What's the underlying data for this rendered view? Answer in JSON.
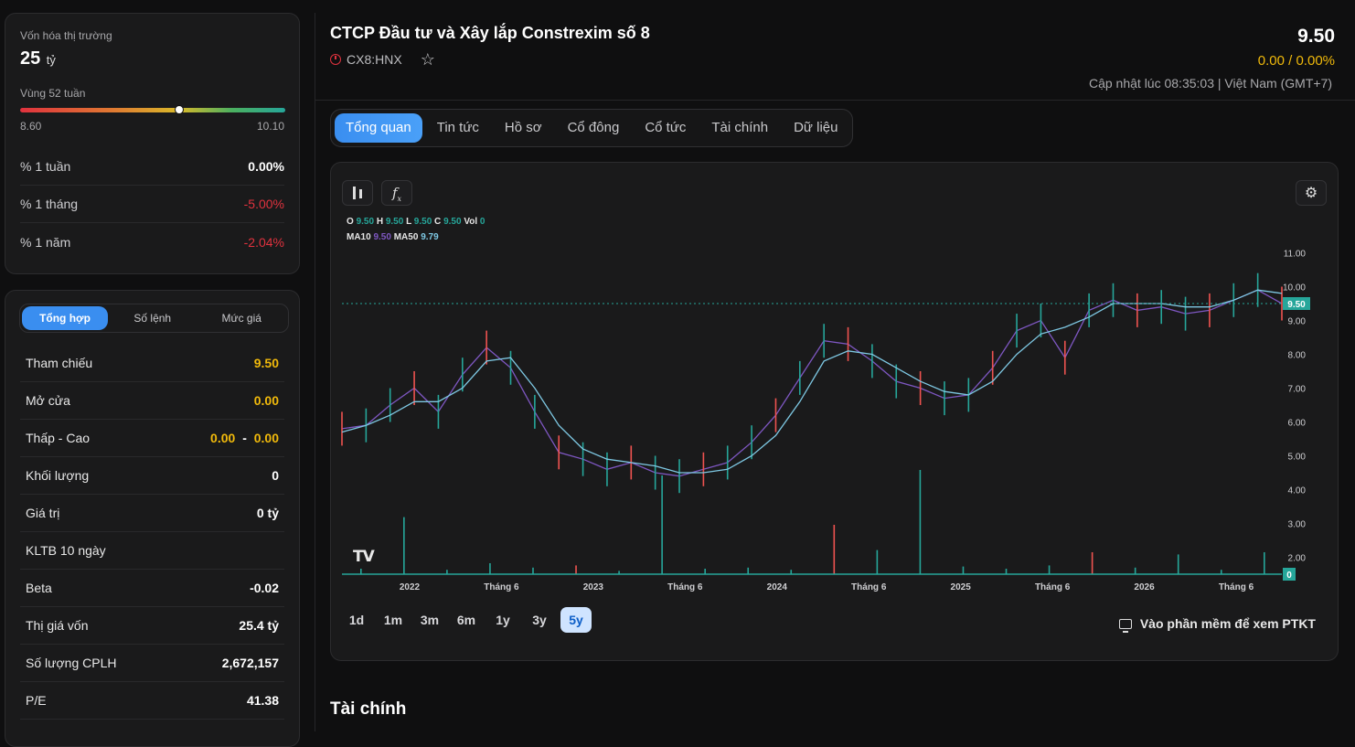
{
  "market_cap": {
    "label": "Vốn hóa thị trường",
    "value": "25",
    "unit": "tỷ"
  },
  "range52": {
    "label": "Vùng 52 tuần",
    "low": "8.60",
    "high": "10.10",
    "position": 0.6
  },
  "perf": [
    {
      "label": "% 1 tuần",
      "value": "0.00%"
    },
    {
      "label": "% 1 tháng",
      "value": "-5.00%"
    },
    {
      "label": "% 1 năm",
      "value": "-2.04%"
    }
  ],
  "summary_tabs": [
    "Tổng hợp",
    "Số lệnh",
    "Mức giá"
  ],
  "stats": [
    {
      "label": "Tham chiếu",
      "value": "9.50"
    },
    {
      "label": "Mở cửa",
      "value": "0.00"
    },
    {
      "label": "Thấp - Cao",
      "low": "0.00",
      "sep": "-",
      "high": "0.00"
    },
    {
      "label": "Khối lượng",
      "value": "0"
    },
    {
      "label": "Giá trị",
      "value": "0 tỷ"
    },
    {
      "label": "KLTB 10 ngày",
      "value": ""
    },
    {
      "label": "Beta",
      "value": "-0.02"
    },
    {
      "label": "Thị giá vốn",
      "value": "25.4 tỷ"
    },
    {
      "label": "Số lượng CPLH",
      "value": "2,672,157"
    },
    {
      "label": "P/E",
      "value": "41.38"
    }
  ],
  "header": {
    "title": "CTCP Đầu tư và Xây lắp Constrexim số 8",
    "ticker": "CX8:HNX",
    "price": "9.50",
    "change": "0.00 / 0.00%",
    "updated": "Cập nhật lúc 08:35:03 | Việt Nam (GMT+7)"
  },
  "nav_tabs": [
    "Tổng quan",
    "Tin tức",
    "Hồ sơ",
    "Cổ đông",
    "Cổ tức",
    "Tài chính",
    "Dữ liệu"
  ],
  "legend": {
    "o_label": "O",
    "o": "9.50",
    "h_label": "H",
    "h": "9.50",
    "l_label": "L",
    "l": "9.50",
    "c_label": "C",
    "c": "9.50",
    "vol_label": "Vol",
    "vol": "0",
    "ma10_label": "MA10",
    "ma10": "9.50",
    "ma50_label": "MA50",
    "ma50": "9.79"
  },
  "timeframes": [
    "1d",
    "1m",
    "3m",
    "6m",
    "1y",
    "3y",
    "5y"
  ],
  "ptkt_label": "Vào phần mềm để xem PTKT",
  "section_title": "Tài chính",
  "colors": {
    "up": "#26a69a",
    "down": "#ef5350",
    "accent": "#2f8cf0",
    "ma10": "#7e57c2",
    "ma50": "#7ec8e3",
    "ref": "#f0b90b"
  },
  "chart_data": {
    "type": "line",
    "series": [
      {
        "name": "MA10",
        "values": [
          5.8,
          5.9,
          6.5,
          7.0,
          6.3,
          7.4,
          8.2,
          7.6,
          6.3,
          5.1,
          4.9,
          4.6,
          4.8,
          4.5,
          4.4,
          4.6,
          4.8,
          5.4,
          6.2,
          7.3,
          8.4,
          8.3,
          7.8,
          7.2,
          7.0,
          6.7,
          6.8,
          7.6,
          8.7,
          9.0,
          7.9,
          9.3,
          9.6,
          9.3,
          9.4,
          9.2,
          9.3,
          9.6,
          9.9,
          9.5
        ]
      },
      {
        "name": "MA50",
        "values": [
          5.7,
          5.9,
          6.2,
          6.6,
          6.6,
          7.0,
          7.8,
          7.9,
          7.0,
          5.9,
          5.2,
          4.9,
          4.8,
          4.7,
          4.5,
          4.5,
          4.6,
          5.0,
          5.6,
          6.6,
          7.8,
          8.1,
          8.0,
          7.6,
          7.2,
          6.9,
          6.8,
          7.2,
          8.0,
          8.6,
          8.8,
          9.1,
          9.5,
          9.5,
          9.5,
          9.4,
          9.4,
          9.6,
          9.9,
          9.8
        ]
      }
    ],
    "y_ticks": [
      "11.00",
      "10.00",
      "9.00",
      "8.00",
      "7.00",
      "6.00",
      "5.00",
      "4.00",
      "3.00",
      "2.00"
    ],
    "ylim": [
      1.5,
      11.5
    ],
    "x_ticks": [
      "2022",
      "Tháng 6",
      "2023",
      "Tháng 6",
      "2024",
      "Tháng 6",
      "2025",
      "Tháng 6",
      "2026",
      "Tháng 6"
    ],
    "last_price": "9.50",
    "last_volume": "0",
    "volume_spikes": [
      0.05,
      0.52,
      0.04,
      0.1,
      0.06,
      0.08,
      0.03,
      0.9,
      0.05,
      0.06,
      0.04,
      0.45,
      0.22,
      0.95,
      0.07,
      0.05,
      0.08,
      0.2,
      0.06,
      0.18,
      0.04,
      0.2
    ]
  }
}
